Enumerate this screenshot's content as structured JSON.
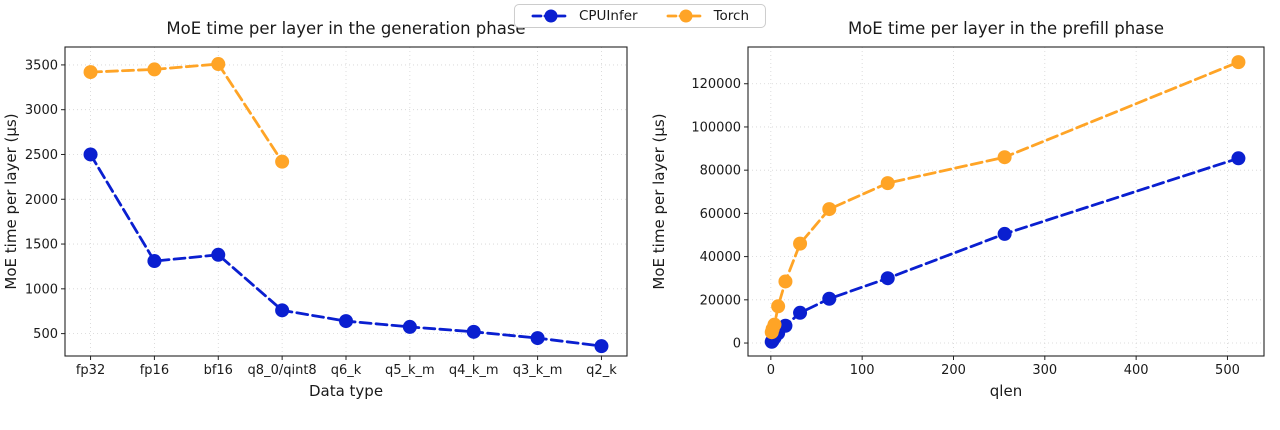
{
  "legend": {
    "items": [
      {
        "label": "CPUInfer",
        "color": "#0a1fd0"
      },
      {
        "label": "Torch",
        "color": "#ffa426"
      }
    ]
  },
  "chart_data": [
    {
      "type": "line",
      "title": "MoE time per layer in the generation phase",
      "xlabel": "Data type",
      "ylabel": "MoE time per layer (µs)",
      "categories": [
        "fp32",
        "fp16",
        "bf16",
        "q8_0/qint8",
        "q6_k",
        "q5_k_m",
        "q4_k_m",
        "q3_k_m",
        "q2_k"
      ],
      "yticks": [
        500,
        1000,
        1500,
        2000,
        2500,
        3000,
        3500
      ],
      "ylim": [
        250,
        3700
      ],
      "grid": true,
      "legend_position": "figure-top-center",
      "series": [
        {
          "name": "CPUInfer",
          "color": "#0a1fd0",
          "values": [
            2500,
            1310,
            1380,
            760,
            640,
            575,
            520,
            450,
            360
          ]
        },
        {
          "name": "Torch",
          "color": "#ffa426",
          "values": [
            3420,
            3450,
            3510,
            2420,
            null,
            null,
            null,
            null,
            null
          ]
        }
      ]
    },
    {
      "type": "line",
      "title": "MoE time per layer in the prefill phase",
      "xlabel": "qlen",
      "ylabel": "MoE time per layer (µs)",
      "x": [
        1,
        2,
        4,
        8,
        16,
        32,
        64,
        128,
        256,
        512
      ],
      "xticks": [
        0,
        100,
        200,
        300,
        400,
        500
      ],
      "xlim": [
        -25,
        540
      ],
      "yticks": [
        0,
        20000,
        40000,
        60000,
        80000,
        100000,
        120000
      ],
      "ylim": [
        -6000,
        137000
      ],
      "grid": true,
      "legend_position": "figure-top-center",
      "series": [
        {
          "name": "CPUInfer",
          "color": "#0a1fd0",
          "values": [
            600,
            1200,
            2400,
            4500,
            8000,
            14000,
            20500,
            30000,
            50500,
            85500
          ]
        },
        {
          "name": "Torch",
          "color": "#ffa426",
          "values": [
            5000,
            6500,
            8500,
            17000,
            28500,
            46000,
            62000,
            74000,
            86000,
            130000
          ]
        }
      ]
    }
  ]
}
